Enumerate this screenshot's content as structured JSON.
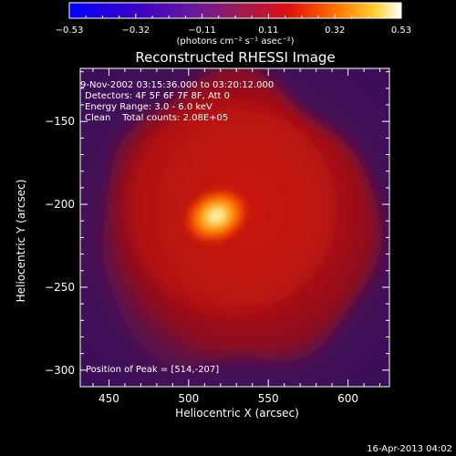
{
  "chart_data": {
    "type": "heatmap",
    "title": "Reconstructed RHESSI Image",
    "xlabel": "Heliocentric X (arcsec)",
    "ylabel": "Heliocentric Y (arcsec)",
    "xlim": [
      432,
      626
    ],
    "ylim": [
      -310,
      -118
    ],
    "xticks": [
      450,
      500,
      550,
      600
    ],
    "yticks": [
      -150,
      -200,
      -250,
      -300
    ],
    "colorbar": {
      "ticks": [
        "-0.53",
        "-0.32",
        "-0.11",
        "0.11",
        "0.32",
        "0.53"
      ],
      "range": [
        -0.53,
        0.53
      ],
      "unit_label": "(photons cm⁻² s⁻¹ asec⁻²)"
    },
    "annotations": [
      "9-Nov-2002 03:15:36.000 to 03:20:12.000",
      "Detectors: 4F 5F 6F 7F 8F, Att 0",
      "Energy Range: 3.0 - 6.0 keV",
      "Clean    Total counts: 2.08E+05"
    ],
    "peak_label": "Position of Peak = [514,-207]",
    "peak": [
      514,
      -207
    ],
    "footer": "16-Apr-2013 04:02"
  }
}
